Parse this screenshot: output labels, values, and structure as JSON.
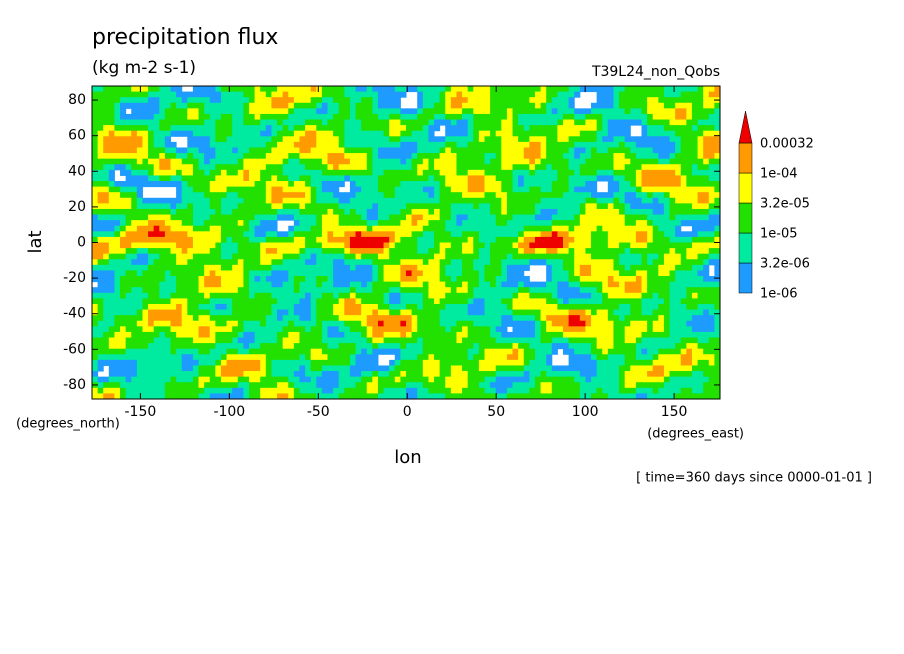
{
  "chart_data": {
    "type": "contour",
    "title": "precipitation flux",
    "subtitle": "(kg m-2 s-1)",
    "dataset": "T39L24_non_Qobs",
    "x_label": "lon",
    "y_label": "lat",
    "x_units": "(degrees_east)",
    "y_units": "(degrees_north)",
    "footer": "[ time=360 days since 0000-01-01 ]",
    "xlim": [
      -177.2,
      175.8
    ],
    "ylim": [
      -87.9,
      87.9
    ],
    "xticks": [
      -150,
      -100,
      -50,
      0,
      50,
      100,
      150
    ],
    "yticks": [
      -80,
      -60,
      -40,
      -20,
      0,
      20,
      40,
      60,
      80
    ],
    "levels": [
      {
        "value": 1e-06,
        "label": "1e-06"
      },
      {
        "value": 3.2e-06,
        "label": "3.2e-06"
      },
      {
        "value": 1e-05,
        "label": "1e-05"
      },
      {
        "value": 3.2e-05,
        "label": "3.2e-05"
      },
      {
        "value": 0.0001,
        "label": "1e-04"
      },
      0.00032
    ],
    "colors": [
      "#1e9bff",
      "#00eaa0",
      "#22e000",
      "#ffff00",
      "#ff9a00",
      "#ee0000"
    ]
  }
}
